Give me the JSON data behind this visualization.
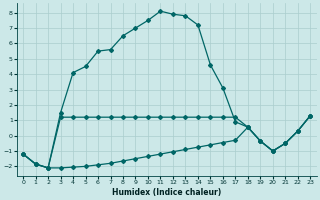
{
  "xlabel": "Humidex (Indice chaleur)",
  "bg_color": "#cce8e8",
  "grid_color": "#aacece",
  "line_color": "#006666",
  "xlim": [
    -0.5,
    23.5
  ],
  "ylim": [
    -2.6,
    8.6
  ],
  "xticks": [
    0,
    1,
    2,
    3,
    4,
    5,
    6,
    7,
    8,
    9,
    10,
    11,
    12,
    13,
    14,
    15,
    16,
    17,
    18,
    19,
    20,
    21,
    22,
    23
  ],
  "yticks": [
    -2,
    -1,
    0,
    1,
    2,
    3,
    4,
    5,
    6,
    7,
    8
  ],
  "curve1_x": [
    0,
    1,
    2,
    3,
    4,
    5,
    6,
    7,
    8,
    9,
    10,
    11,
    12,
    13,
    14,
    15,
    16,
    17,
    18,
    19,
    20,
    21,
    22,
    23
  ],
  "curve1_y": [
    -1.2,
    -1.85,
    -2.1,
    1.5,
    4.1,
    4.5,
    5.5,
    5.6,
    6.5,
    7.0,
    7.5,
    8.1,
    7.9,
    7.8,
    7.2,
    4.6,
    3.1,
    0.9,
    0.55,
    -0.35,
    -1.0,
    -0.5,
    0.3,
    1.3
  ],
  "curve2_x": [
    0,
    1,
    2,
    3,
    4,
    5,
    6,
    7,
    8,
    9,
    10,
    11,
    12,
    13,
    14,
    15,
    16,
    17,
    18,
    19,
    20,
    21,
    22,
    23
  ],
  "curve2_y": [
    -1.2,
    -1.85,
    -2.1,
    1.2,
    1.2,
    1.2,
    1.2,
    1.2,
    1.2,
    1.2,
    1.2,
    1.2,
    1.2,
    1.2,
    1.2,
    1.2,
    1.2,
    1.2,
    0.55,
    -0.35,
    -1.0,
    -0.5,
    0.3,
    1.3
  ],
  "curve3_x": [
    0,
    1,
    2,
    3,
    4,
    5,
    6,
    7,
    8,
    9,
    10,
    11,
    12,
    13,
    14,
    15,
    16,
    17,
    18,
    19,
    20,
    21,
    22,
    23
  ],
  "curve3_y": [
    -1.2,
    -1.85,
    -2.1,
    -2.1,
    -2.05,
    -2.0,
    -1.9,
    -1.8,
    -1.65,
    -1.5,
    -1.35,
    -1.2,
    -1.05,
    -0.9,
    -0.75,
    -0.6,
    -0.45,
    -0.3,
    0.55,
    -0.35,
    -1.0,
    -0.5,
    0.3,
    1.3
  ],
  "xlabel_fontsize": 5.5,
  "tick_fontsize": 4.5,
  "marker_size": 2.0,
  "line_width": 0.9
}
